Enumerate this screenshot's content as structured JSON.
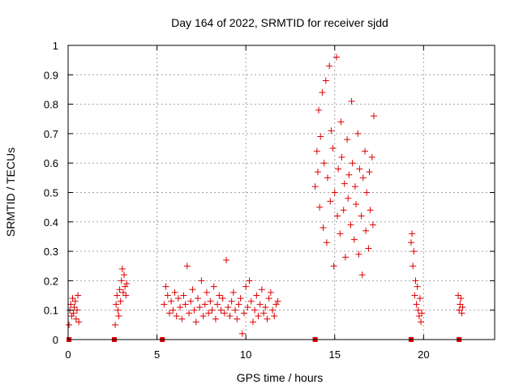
{
  "chart_data": {
    "type": "scatter",
    "title": "Day 164 of 2022, SRMTID for receiver sjdd",
    "xlabel": "GPS time / hours",
    "ylabel": "SRMTID / TECUs",
    "xlim": [
      0,
      24
    ],
    "ylim": [
      0,
      1
    ],
    "xticks": [
      0,
      5,
      10,
      15,
      20
    ],
    "xtick_labels": [
      "0",
      "5",
      "10",
      "15",
      "20"
    ],
    "yticks": [
      0,
      0.1,
      0.2,
      0.3,
      0.4,
      0.5,
      0.6,
      0.7,
      0.8,
      0.9,
      1
    ],
    "ytick_labels": [
      "0",
      "0.1",
      "0.2",
      "0.3",
      "0.4",
      "0.5",
      "0.6",
      "0.7",
      "0.8",
      "0.9",
      "1"
    ],
    "grid": true,
    "marker": "+",
    "color": "#dd0000",
    "zero_markers": [
      0.05,
      2.6,
      5.3,
      13.9,
      19.3,
      22.0
    ],
    "series": [
      {
        "name": "SRMTID",
        "x": [
          0.05,
          0.1,
          0.15,
          0.2,
          0.25,
          0.3,
          0.35,
          0.4,
          0.45,
          0.5,
          0.55,
          0.6,
          2.65,
          2.7,
          2.75,
          2.8,
          2.85,
          2.9,
          2.95,
          3.0,
          3.05,
          3.1,
          3.15,
          3.2,
          3.25,
          3.3,
          5.4,
          5.5,
          5.6,
          5.7,
          5.8,
          5.9,
          6.0,
          6.1,
          6.2,
          6.3,
          6.4,
          6.5,
          6.6,
          6.7,
          6.8,
          6.9,
          7.0,
          7.1,
          7.2,
          7.3,
          7.4,
          7.5,
          7.6,
          7.7,
          7.8,
          7.9,
          8.0,
          8.1,
          8.2,
          8.3,
          8.4,
          8.5,
          8.6,
          8.7,
          8.8,
          8.9,
          9.0,
          9.1,
          9.2,
          9.3,
          9.4,
          9.5,
          9.6,
          9.7,
          9.8,
          9.9,
          10.0,
          10.1,
          10.2,
          10.3,
          10.4,
          10.5,
          10.6,
          10.7,
          10.8,
          10.9,
          11.0,
          11.1,
          11.2,
          11.3,
          11.4,
          11.5,
          11.6,
          11.7,
          11.8,
          13.9,
          14.0,
          14.05,
          14.1,
          14.15,
          14.2,
          14.3,
          14.35,
          14.4,
          14.5,
          14.55,
          14.6,
          14.7,
          14.75,
          14.8,
          14.9,
          14.95,
          15.0,
          15.1,
          15.15,
          15.2,
          15.3,
          15.35,
          15.4,
          15.5,
          15.55,
          15.6,
          15.7,
          15.75,
          15.8,
          15.9,
          15.95,
          16.0,
          16.1,
          16.15,
          16.2,
          16.3,
          16.35,
          16.4,
          16.5,
          16.55,
          16.6,
          16.7,
          16.75,
          16.8,
          16.9,
          16.95,
          17.0,
          17.1,
          17.15,
          17.2,
          19.3,
          19.35,
          19.4,
          19.45,
          19.5,
          19.55,
          19.6,
          19.65,
          19.7,
          19.75,
          19.8,
          19.85,
          19.9,
          21.95,
          22.0,
          22.05,
          22.1,
          22.15,
          22.2
        ],
        "y": [
          0.05,
          0.1,
          0.12,
          0.08,
          0.14,
          0.09,
          0.11,
          0.13,
          0.07,
          0.1,
          0.15,
          0.06,
          0.05,
          0.12,
          0.15,
          0.1,
          0.08,
          0.17,
          0.13,
          0.2,
          0.24,
          0.16,
          0.22,
          0.18,
          0.15,
          0.19,
          0.12,
          0.18,
          0.15,
          0.09,
          0.13,
          0.1,
          0.16,
          0.08,
          0.14,
          0.11,
          0.07,
          0.15,
          0.12,
          0.25,
          0.09,
          0.13,
          0.17,
          0.1,
          0.06,
          0.14,
          0.11,
          0.2,
          0.08,
          0.12,
          0.16,
          0.09,
          0.13,
          0.1,
          0.18,
          0.07,
          0.12,
          0.15,
          0.1,
          0.14,
          0.09,
          0.27,
          0.11,
          0.08,
          0.13,
          0.16,
          0.1,
          0.07,
          0.12,
          0.14,
          0.02,
          0.09,
          0.18,
          0.11,
          0.2,
          0.13,
          0.06,
          0.1,
          0.15,
          0.08,
          0.12,
          0.17,
          0.09,
          0.11,
          0.07,
          0.14,
          0.16,
          0.1,
          0.08,
          0.12,
          0.13,
          0.52,
          0.64,
          0.57,
          0.78,
          0.45,
          0.69,
          0.84,
          0.38,
          0.6,
          0.88,
          0.33,
          0.55,
          0.93,
          0.47,
          0.71,
          0.65,
          0.25,
          0.5,
          0.96,
          0.42,
          0.58,
          0.36,
          0.74,
          0.62,
          0.44,
          0.53,
          0.28,
          0.68,
          0.48,
          0.56,
          0.39,
          0.81,
          0.6,
          0.34,
          0.52,
          0.46,
          0.7,
          0.29,
          0.58,
          0.42,
          0.22,
          0.55,
          0.64,
          0.37,
          0.5,
          0.31,
          0.57,
          0.44,
          0.62,
          0.39,
          0.76,
          0.33,
          0.36,
          0.25,
          0.3,
          0.15,
          0.2,
          0.12,
          0.18,
          0.1,
          0.08,
          0.14,
          0.06,
          0.09,
          0.15,
          0.1,
          0.12,
          0.14,
          0.09,
          0.11
        ]
      }
    ]
  }
}
